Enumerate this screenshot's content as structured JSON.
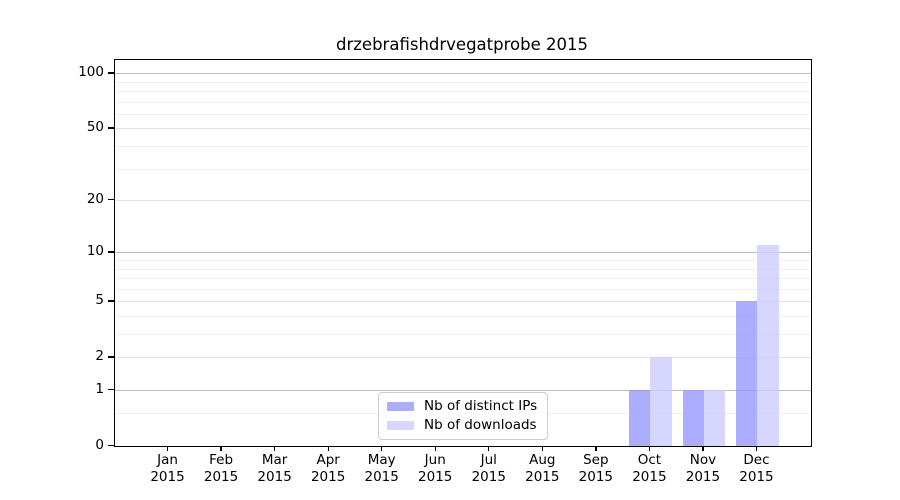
{
  "figure": {
    "title": "drzebrafishdrvegatprobe 2015"
  },
  "legend": {
    "items": [
      {
        "label": "Nb of distinct IPs"
      },
      {
        "label": "Nb of downloads"
      }
    ]
  },
  "chart_data": {
    "type": "bar",
    "title": "drzebrafishdrvegatprobe 2015",
    "categories": [
      "Jan",
      "Feb",
      "Mar",
      "Apr",
      "May",
      "Jun",
      "Jul",
      "Aug",
      "Sep",
      "Oct",
      "Nov",
      "Dec"
    ],
    "year": "2015",
    "series": [
      {
        "name": "Nb of distinct IPs",
        "color": "#9999ff",
        "alpha": 0.8,
        "values": [
          0,
          0,
          0,
          0,
          0,
          0,
          0,
          0,
          0,
          1,
          1,
          5
        ]
      },
      {
        "name": "Nb of downloads",
        "color": "#ccccff",
        "alpha": 0.8,
        "values": [
          0,
          0,
          0,
          0,
          0,
          0,
          0,
          0,
          0,
          2,
          1,
          11
        ]
      }
    ],
    "yscale": "log1p",
    "yticks": [
      100,
      50,
      20,
      10,
      5,
      2,
      1,
      0
    ],
    "ylim": [
      0,
      118
    ],
    "grid": {
      "decade_lines": [
        1,
        10,
        100
      ],
      "sub_lines": [
        2,
        5,
        20,
        50
      ],
      "minor_lines": [
        0.5,
        3,
        4,
        6,
        7,
        8,
        9,
        30,
        40,
        60,
        70,
        80,
        90
      ],
      "decade_color": "#bdbdbd",
      "sub_color": "#e3e3e3",
      "minor_color": "#efefef"
    },
    "legend_position": "lower-center",
    "xlabel": "",
    "ylabel": ""
  }
}
